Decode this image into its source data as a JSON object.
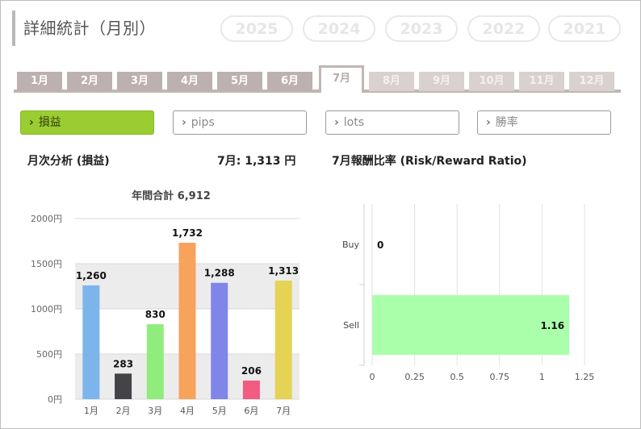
{
  "header": {
    "title": "詳細統計（月別）"
  },
  "years": [
    {
      "label": "2025",
      "active": true
    },
    {
      "label": "2024",
      "active": false
    },
    {
      "label": "2023",
      "active": false
    },
    {
      "label": "2022",
      "active": false
    },
    {
      "label": "2021",
      "active": false
    }
  ],
  "months": [
    {
      "label": "1月",
      "state": "enabled"
    },
    {
      "label": "2月",
      "state": "enabled"
    },
    {
      "label": "3月",
      "state": "enabled"
    },
    {
      "label": "4月",
      "state": "enabled"
    },
    {
      "label": "5月",
      "state": "enabled"
    },
    {
      "label": "6月",
      "state": "enabled"
    },
    {
      "label": "7月",
      "state": "active"
    },
    {
      "label": "8月",
      "state": "disabled"
    },
    {
      "label": "9月",
      "state": "disabled"
    },
    {
      "label": "10月",
      "state": "disabled"
    },
    {
      "label": "11月",
      "state": "disabled"
    },
    {
      "label": "12月",
      "state": "disabled"
    }
  ],
  "metrics": [
    {
      "label": "損益",
      "active": true
    },
    {
      "label": "pips",
      "active": false
    },
    {
      "label": "lots",
      "active": false
    },
    {
      "label": "勝率",
      "active": false
    }
  ],
  "monthly": {
    "heading": "月次分析 (損益)",
    "current": "7月:  1,313 円"
  },
  "rr": {
    "heading": "7月報酬比率 (Risk/Reward Ratio)"
  },
  "colors": {
    "accent_orange": "#f58a16",
    "metric_active_green": "#9acd32",
    "tab_brown": "#bcb1b0",
    "rr_bar": "#aaffaa"
  },
  "chart_data": [
    {
      "type": "bar",
      "title": "年間合計 6,912",
      "categories": [
        "1月",
        "2月",
        "3月",
        "4月",
        "5月",
        "6月",
        "7月"
      ],
      "values": [
        1260,
        283,
        830,
        1732,
        1288,
        206,
        1313
      ],
      "value_labels": [
        "1,260",
        "283",
        "830",
        "1,732",
        "1,288",
        "206",
        "1,313"
      ],
      "colors": [
        "#7cb5ec",
        "#434348",
        "#90ed7d",
        "#f7a35c",
        "#8085e9",
        "#f15c80",
        "#e4d354"
      ],
      "ylim": [
        0,
        2000
      ],
      "yticks": [
        0,
        500,
        1000,
        1500,
        2000
      ],
      "ytick_labels": [
        "0円",
        "500円",
        "1000円",
        "1500円",
        "2000円"
      ],
      "alternate_band_fill": "#ececec",
      "grid": true
    },
    {
      "type": "bar",
      "orientation": "horizontal",
      "categories": [
        "Buy",
        "Sell"
      ],
      "values": [
        0,
        1.16
      ],
      "value_labels": [
        "0",
        "1.16"
      ],
      "color": "#aaffaa",
      "xlim": [
        0,
        1.25
      ],
      "xticks": [
        0,
        0.25,
        0.5,
        0.75,
        1,
        1.25
      ],
      "xtick_labels": [
        "0",
        "0.25",
        "0.5",
        "0.75",
        "1",
        "1.25"
      ],
      "grid": true
    }
  ]
}
